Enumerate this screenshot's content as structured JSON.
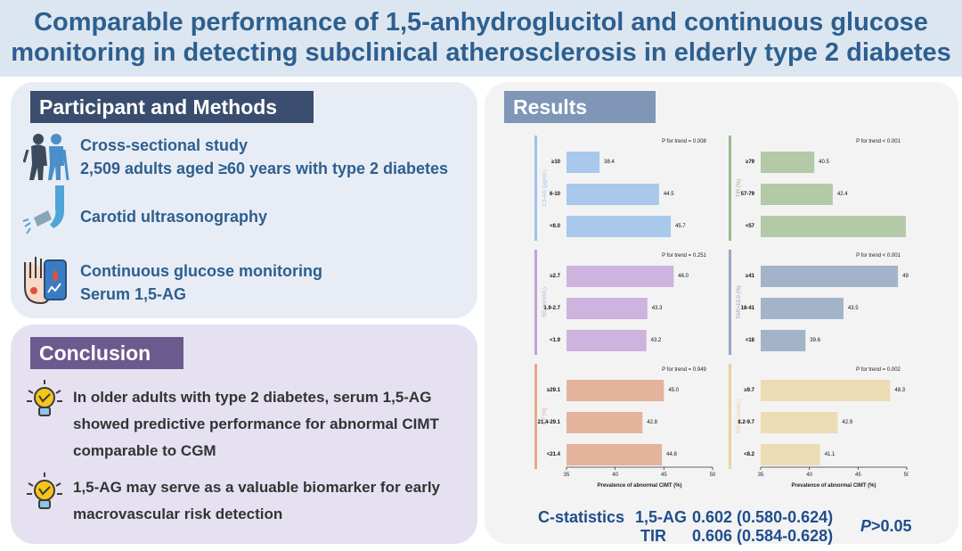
{
  "title": {
    "line1": "Comparable performance of 1,5-anhydroglucitol and continuous glucose",
    "line2": "monitoring in detecting subclinical atherosclerosis in elderly type 2 diabetes"
  },
  "methods": {
    "header": "Participant and Methods",
    "study_design": "Cross-sectional study",
    "participants": "2,509 adults aged ≥60 years with type 2 diabetes",
    "ultrasound": "Carotid ultrasonography",
    "cgm": "Continuous glucose monitoring",
    "serum": "Serum 1,5-AG"
  },
  "conclusion": {
    "header": "Conclusion",
    "point1": [
      "In older adults with type 2 diabetes, serum 1,5-AG",
      "showed predictive performance for abnormal CIMT",
      "comparable to CGM"
    ],
    "point2": [
      "1,5-AG may serve as a valuable biomarker for early",
      "macrovascular risk detection"
    ]
  },
  "results": {
    "header": "Results",
    "stats": {
      "label": "C-statistics",
      "row1_name": "1,5-AG",
      "row1_value": "0.602 (0.580-0.624)",
      "row2_name": "TIR",
      "row2_value": "0.606 (0.584-0.628)",
      "p_prefix": "P",
      "p_suffix": ">0.05"
    }
  },
  "chart_data": [
    {
      "type": "bar",
      "orientation": "horizontal",
      "ylabel": "1,5-AG (μg/mL)",
      "categories": [
        "≥10",
        "6-10",
        "<6.0"
      ],
      "values": [
        38.4,
        44.5,
        45.7
      ],
      "trend_p": "P for trend = 0.008",
      "color": "#a8c8ec",
      "axis_color": "#9ec3ea",
      "label_color": "#9ec3ea",
      "xlim": [
        35,
        50
      ],
      "xticks": [
        35,
        40,
        45,
        50
      ],
      "xlabel": "Prevalence of abnormal CIMT (%)"
    },
    {
      "type": "bar",
      "orientation": "horizontal",
      "ylabel": "TIR (%)",
      "categories": [
        "≥79",
        "57-79",
        "<57"
      ],
      "values": [
        40.5,
        42.4,
        49.9
      ],
      "trend_p": "P for trend < 0.001",
      "color": "#b3c9a8",
      "axis_color": "#9ab88f",
      "label_color": "#8fae84",
      "xlim": [
        35,
        50
      ],
      "xticks": [
        35,
        40,
        45,
        50
      ],
      "xlabel": "Prevalence of abnormal CIMT (%)"
    },
    {
      "type": "bar",
      "orientation": "horizontal",
      "ylabel": "SD (mmol/L)",
      "categories": [
        "≥2.7",
        "1.9-2.7",
        "<1.9"
      ],
      "values": [
        46.0,
        43.3,
        43.2
      ],
      "trend_p": "P for trend = 0.251",
      "color": "#cdb3de",
      "axis_color": "#c2a2d8",
      "label_color": "#c2a2d8",
      "xlim": [
        35,
        50
      ],
      "xticks": [
        35,
        40,
        45,
        50
      ],
      "xlabel": "Prevalence of abnormal CIMT (%)"
    },
    {
      "type": "bar",
      "orientation": "horizontal",
      "ylabel": "TAR>10.0 (%)",
      "categories": [
        "≥41",
        "18-41",
        "<18"
      ],
      "values": [
        49.1,
        43.5,
        39.6
      ],
      "trend_p": "P for trend < 0.001",
      "color": "#a4b4c8",
      "axis_color": "#98a9bf",
      "label_color": "#8d9db3",
      "xlim": [
        35,
        50
      ],
      "xticks": [
        35,
        40,
        45,
        50
      ],
      "xlabel": "Prevalence of abnormal CIMT (%)"
    },
    {
      "type": "bar",
      "orientation": "horizontal",
      "ylabel": "CV (%)",
      "categories": [
        "≥29.1",
        "21.4-29.1",
        "<21.4"
      ],
      "values": [
        45.0,
        42.8,
        44.8
      ],
      "trend_p": "P for trend = 0.949",
      "color": "#e3b39c",
      "axis_color": "#e6a98c",
      "label_color": "#e6a98c",
      "xlim": [
        35,
        50
      ],
      "xticks": [
        35,
        40,
        45,
        50
      ],
      "xlabel": "Prevalence of abnormal CIMT (%)"
    },
    {
      "type": "bar",
      "orientation": "horizontal",
      "ylabel": "MBG (mmol/L)",
      "categories": [
        "≥9.7",
        "8.2-9.7",
        "<8.2"
      ],
      "values": [
        48.3,
        42.9,
        41.1
      ],
      "trend_p": "P for trend = 0.002",
      "color": "#ecdcb4",
      "axis_color": "#e9d29e",
      "label_color": "#e9d29e",
      "xlim": [
        35,
        50
      ],
      "xticks": [
        35,
        40,
        45,
        50
      ],
      "xlabel": "Prevalence of abnormal CIMT (%)"
    }
  ]
}
